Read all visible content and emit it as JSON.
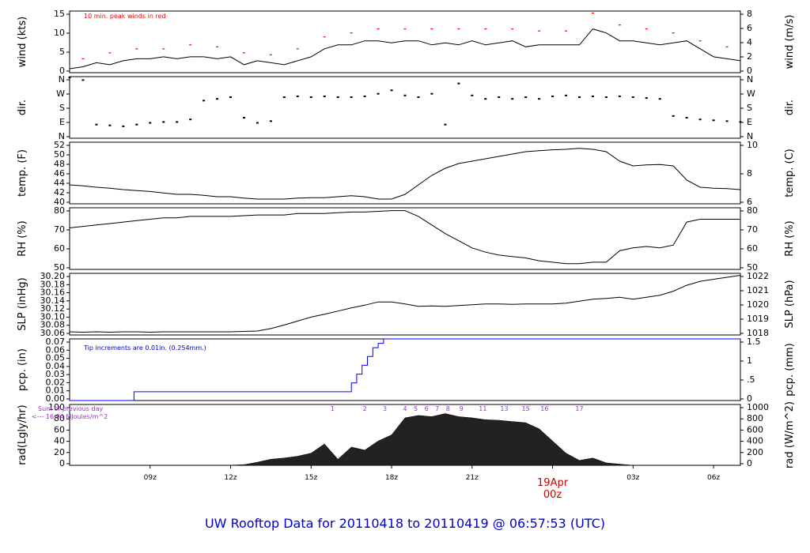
{
  "title": "UW Rooftop Data for 20110418  to  20110419 @ 06:57:53  (UTC)",
  "colors": {
    "title": "#0000cc",
    "peak": "#ff0000",
    "pcp": "#0000ff",
    "annot_blue": "#0000cc",
    "annot_purple": "#9933cc",
    "date_red": "#cc0000",
    "line": "#000000"
  },
  "x_ticks": [
    "09z",
    "12z",
    "15z",
    "18z",
    "21z",
    "19Apr",
    "03z",
    "06z"
  ],
  "date_label": {
    "day": "19Apr",
    "hour": "00z"
  },
  "chart_data": [
    {
      "type": "line",
      "name": "wind",
      "ylabel_left": "wind (kts)",
      "ylabel_right": "wind (m/s)",
      "left_ticks": [
        "0",
        "5",
        "10",
        "15"
      ],
      "right_ticks": [
        "0",
        "2",
        "4",
        "6",
        "8"
      ],
      "ylim": [
        0,
        15.5
      ],
      "annotation": "10 min. peak winds in red",
      "x": [
        6,
        6.5,
        7,
        7.5,
        8,
        8.5,
        9,
        9.5,
        10,
        10.5,
        11,
        11.5,
        12,
        12.5,
        13,
        13.5,
        14,
        14.5,
        15,
        15.5,
        16,
        16.5,
        17,
        17.5,
        18,
        18.5,
        19,
        19.5,
        20,
        20.5,
        21,
        21.5,
        22,
        22.5,
        23,
        23.5,
        24,
        24.5,
        25,
        25.5,
        26,
        26.5,
        27,
        27.5,
        28,
        28.5,
        29,
        29.5,
        30,
        30.5,
        31
      ],
      "y": [
        1,
        1.5,
        2.5,
        2,
        3,
        3.5,
        3.5,
        4,
        3.5,
        4,
        4,
        3.5,
        4,
        2,
        3,
        2.5,
        2,
        3,
        4,
        6,
        7,
        7,
        8,
        8,
        7.5,
        8,
        8,
        7,
        7.5,
        7,
        8,
        7,
        7.5,
        8,
        6.5,
        7,
        7,
        7,
        7,
        11,
        10,
        8,
        8,
        7.5,
        7,
        7.5,
        8,
        6,
        4,
        3.5,
        3
      ],
      "peak_x": [
        6.5,
        7.5,
        8.5,
        9.5,
        10.5,
        11.5,
        12.5,
        13.5,
        14.5,
        15.5,
        16.5,
        17.5,
        18.5,
        19.5,
        20.5,
        21.5,
        22.5,
        23.5,
        24.5,
        25.5,
        26.5,
        27.5,
        28.5,
        29.5,
        30.5
      ],
      "peak_y": [
        3.5,
        5,
        6,
        6,
        7,
        6.5,
        5,
        4.5,
        6,
        9,
        10,
        11,
        11,
        11,
        11,
        11,
        11,
        10.5,
        10.5,
        15,
        12,
        11,
        10,
        8,
        6.5
      ]
    },
    {
      "type": "scatter",
      "name": "dir",
      "ylabel_left": "dir.",
      "ylabel_right": "dir.",
      "left_ticks": [
        "N",
        "E",
        "S",
        "W",
        "N"
      ],
      "right_ticks": [
        "N",
        "E",
        "S",
        "W",
        "N"
      ],
      "ylim": [
        0,
        360
      ],
      "x": [
        6,
        6.5,
        7,
        7.5,
        8,
        8.5,
        9,
        9.5,
        10,
        10.5,
        11,
        11.5,
        12,
        12.5,
        13,
        13.5,
        14,
        14.5,
        15,
        15.5,
        16,
        16.5,
        17,
        17.5,
        18,
        18.5,
        19,
        19.5,
        20,
        20.5,
        21,
        21.5,
        22,
        22.5,
        23,
        23.5,
        24,
        24.5,
        25,
        25.5,
        26,
        26.5,
        27,
        27.5,
        28,
        28.5,
        29,
        29.5,
        30,
        30.5,
        31
      ],
      "y": [
        355,
        340,
        80,
        75,
        70,
        80,
        90,
        95,
        95,
        110,
        220,
        230,
        240,
        120,
        90,
        100,
        240,
        245,
        240,
        245,
        240,
        240,
        245,
        260,
        280,
        250,
        240,
        260,
        80,
        320,
        250,
        230,
        240,
        230,
        240,
        230,
        245,
        250,
        240,
        245,
        240,
        245,
        240,
        235,
        230,
        130,
        120,
        110,
        105,
        100,
        95
      ]
    },
    {
      "type": "line",
      "name": "temp",
      "ylabel_left": "temp. (F)",
      "ylabel_right": "temp. (C)",
      "left_ticks": [
        "40",
        "42",
        "44",
        "46",
        "48",
        "50",
        "52"
      ],
      "right_ticks": [
        "6",
        "8",
        "10"
      ],
      "ylim": [
        40,
        53
      ],
      "x": [
        6,
        6.5,
        7,
        7.5,
        8,
        8.5,
        9,
        9.5,
        10,
        10.5,
        11,
        11.5,
        12,
        12.5,
        13,
        13.5,
        14,
        14.5,
        15,
        15.5,
        16,
        16.5,
        17,
        17.5,
        18,
        18.5,
        19,
        19.5,
        20,
        20.5,
        21,
        21.5,
        22,
        22.5,
        23,
        23.5,
        24,
        24.5,
        25,
        25.5,
        26,
        26.5,
        27,
        27.5,
        28,
        28.5,
        29,
        29.5,
        30,
        30.5,
        31
      ],
      "y": [
        44,
        43.8,
        43.5,
        43.3,
        43,
        42.8,
        42.6,
        42.3,
        42,
        42,
        41.8,
        41.5,
        41.5,
        41.2,
        41,
        41,
        41,
        41.2,
        41.3,
        41.3,
        41.5,
        41.7,
        41.5,
        41,
        41,
        42,
        44,
        46,
        47.5,
        48.5,
        49,
        49.5,
        50,
        50.5,
        51,
        51.2,
        51.4,
        51.5,
        51.7,
        51.5,
        51,
        49,
        48,
        48.2,
        48.3,
        48,
        45,
        43.5,
        43.3,
        43.2,
        43
      ]
    },
    {
      "type": "line",
      "name": "rh",
      "ylabel_left": "RH (%)",
      "ylabel_right": "RH (%)",
      "left_ticks": [
        "50",
        "60",
        "70",
        "80"
      ],
      "right_ticks": [
        "50",
        "60",
        "70",
        "80"
      ],
      "ylim": [
        45,
        88
      ],
      "x": [
        6,
        6.5,
        7,
        7.5,
        8,
        8.5,
        9,
        9.5,
        10,
        10.5,
        11,
        11.5,
        12,
        12.5,
        13,
        13.5,
        14,
        14.5,
        15,
        15.5,
        16,
        16.5,
        17,
        17.5,
        18,
        18.5,
        19,
        19.5,
        20,
        20.5,
        21,
        21.5,
        22,
        22.5,
        23,
        23.5,
        24,
        24.5,
        25,
        25.5,
        26,
        26.5,
        27,
        27.5,
        28,
        28.5,
        29,
        29.5,
        30,
        30.5,
        31
      ],
      "y": [
        74,
        75,
        76,
        77,
        78,
        79,
        80,
        81,
        81,
        82,
        82,
        82,
        82,
        82.5,
        83,
        83,
        83,
        84,
        84,
        84,
        84.5,
        85,
        85,
        85.5,
        86,
        86,
        82,
        76,
        70,
        65,
        60,
        57,
        55,
        54,
        53,
        51,
        50,
        49,
        49,
        50,
        50,
        58,
        60,
        61,
        60,
        62,
        78,
        80,
        80,
        80,
        80
      ]
    },
    {
      "type": "line",
      "name": "slp",
      "ylabel_left": "SLP (inHg)",
      "ylabel_right": "SLP (hPa)",
      "left_ticks": [
        "30.06",
        "30.08",
        "30.10",
        "30.12",
        "30.14",
        "30.16",
        "30.18",
        "30.20"
      ],
      "right_ticks": [
        "1018",
        "1019",
        "1020",
        "1021",
        "1022"
      ],
      "ylim": [
        30.05,
        30.205
      ],
      "x": [
        6,
        6.5,
        7,
        7.5,
        8,
        8.5,
        9,
        9.5,
        10,
        10.5,
        11,
        11.5,
        12,
        12.5,
        13,
        13.5,
        14,
        14.5,
        15,
        15.5,
        16,
        16.5,
        17,
        17.5,
        18,
        18.5,
        19,
        19.5,
        20,
        20.5,
        21,
        21.5,
        22,
        22.5,
        23,
        23.5,
        24,
        24.5,
        25,
        25.5,
        26,
        26.5,
        27,
        27.5,
        28,
        28.5,
        29,
        29.5,
        30,
        30.5,
        31
      ],
      "y": [
        30.058,
        30.057,
        30.058,
        30.057,
        30.058,
        30.058,
        30.057,
        30.058,
        30.058,
        30.058,
        30.058,
        30.058,
        30.058,
        30.059,
        30.06,
        30.066,
        30.075,
        30.085,
        30.095,
        30.102,
        30.11,
        30.118,
        30.125,
        30.133,
        30.133,
        30.128,
        30.122,
        30.123,
        30.122,
        30.124,
        30.126,
        30.128,
        30.128,
        30.127,
        30.128,
        30.128,
        30.128,
        30.13,
        30.135,
        30.14,
        30.142,
        30.145,
        30.14,
        30.145,
        30.15,
        30.16,
        30.175,
        30.185,
        30.19,
        30.195,
        30.2
      ]
    },
    {
      "type": "line",
      "name": "pcp",
      "ylabel_left": "pcp. (in)",
      "ylabel_right": "pcp. (mm)",
      "left_ticks": [
        "0.00",
        "0.01",
        "0.02",
        "0.03",
        "0.04",
        "0.05",
        "0.06",
        "0.07"
      ],
      "right_ticks": [
        "0",
        ".5",
        "1",
        "1.5"
      ],
      "ylim": [
        0,
        0.07
      ],
      "annotation": "Tip increments are 0.01in. (0.254mm.)",
      "x": [
        6,
        8.4,
        8.4,
        16.5,
        16.5,
        16.7,
        16.7,
        16.9,
        16.9,
        17.1,
        17.1,
        17.3,
        17.3,
        17.5,
        17.5,
        17.7,
        17.7,
        31
      ],
      "y": [
        0,
        0,
        0.01,
        0.01,
        0.02,
        0.02,
        0.03,
        0.03,
        0.04,
        0.04,
        0.05,
        0.05,
        0.06,
        0.06,
        0.065,
        0.065,
        0.07,
        0.07
      ]
    },
    {
      "type": "area",
      "name": "rad",
      "ylabel_left": "rad(Lgly/hr)",
      "ylabel_right": "rad (W/m^2)",
      "left_ticks": [
        "0",
        "20",
        "40",
        "60",
        "80",
        "100"
      ],
      "right_ticks": [
        "0",
        "200",
        "400",
        "600",
        "800",
        "1000"
      ],
      "ylim": [
        0,
        100
      ],
      "prev_day_label": "Sum of previous day",
      "prev_day_value": "<--- 16.94 MJoules/m^2",
      "hour_labels": [
        "1",
        "2",
        "3",
        "4",
        "5",
        "6",
        "7",
        "8",
        "9",
        "11",
        "13",
        "15",
        "16",
        "17"
      ],
      "x": [
        11.8,
        12.5,
        13,
        13.5,
        14,
        14.5,
        15,
        15.5,
        16,
        16.5,
        17,
        17.5,
        18,
        18.5,
        19,
        19.5,
        20,
        20.5,
        21,
        21.5,
        22,
        22.5,
        23,
        23.5,
        24,
        24.5,
        25,
        25.5,
        26,
        26.5,
        27
      ],
      "y": [
        0,
        1,
        5,
        10,
        12,
        15,
        20,
        35,
        10,
        30,
        25,
        40,
        50,
        78,
        82,
        80,
        85,
        80,
        78,
        75,
        74,
        72,
        70,
        60,
        40,
        20,
        8,
        12,
        4,
        2,
        0
      ],
      "hour_label_x": [
        15.8,
        17.0,
        17.75,
        18.5,
        18.9,
        19.3,
        19.7,
        20.1,
        20.6,
        21.4,
        22.2,
        23.0,
        23.7,
        25.0
      ]
    }
  ]
}
